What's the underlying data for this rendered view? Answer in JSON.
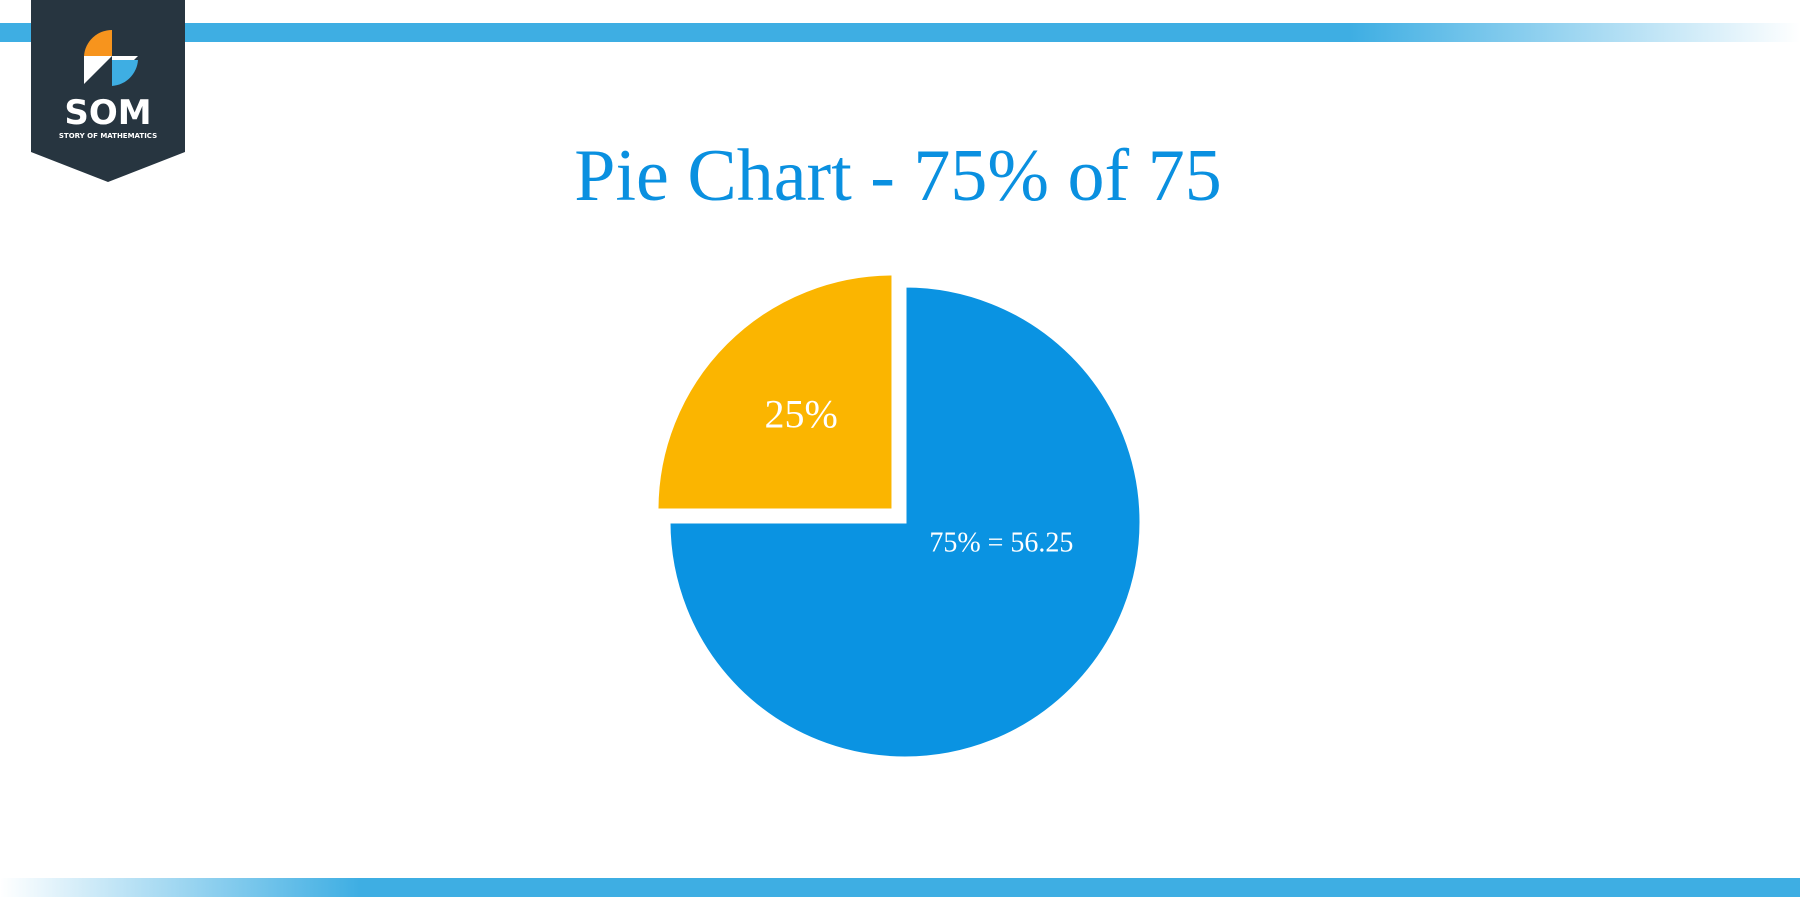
{
  "logo": {
    "name": "SOM",
    "tagline": "STORY OF MATHEMATICS"
  },
  "chart_data": {
    "type": "pie",
    "title": "Pie Chart - 75% of 75",
    "values": [
      75,
      25
    ],
    "value_labels": [
      "75% = 56.25",
      "25%"
    ],
    "colors": [
      "#0a93e2",
      "#fbb500"
    ],
    "exploded": [
      false,
      true
    ]
  }
}
